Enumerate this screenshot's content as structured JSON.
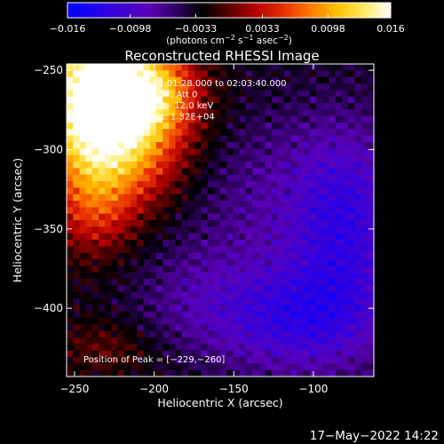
{
  "chart_data": {
    "type": "heatmap",
    "title": "Reconstructed RHESSI Image",
    "xlabel": "Heliocentric X (arcsec)",
    "ylabel": "Heliocentric Y (arcsec)",
    "xlim": [
      -255,
      -62
    ],
    "ylim": [
      -443,
      -246
    ],
    "x_ticks": [
      -250,
      -200,
      -150,
      -100
    ],
    "x_tick_labels": [
      "−250",
      "−200",
      "−150",
      "−100"
    ],
    "y_ticks": [
      -250,
      -300,
      -350,
      -400
    ],
    "y_tick_labels": [
      "−250",
      "−300",
      "−350",
      "−400"
    ],
    "colorbar": {
      "range": [
        -0.016,
        0.016
      ],
      "ticks": [
        -0.016,
        -0.0098,
        -0.0033,
        0.0033,
        0.0098,
        0.016
      ],
      "tick_labels": [
        "−0.016",
        "−0.0098",
        "−0.0033",
        "0.0033",
        "0.0098",
        "0.016"
      ],
      "units_main": "(photons cm",
      "units_exp1": "−2",
      "units_mid1": " s",
      "units_exp2": "−1",
      "units_mid2": " asec",
      "units_exp3": "−2",
      "units_end": ")",
      "colors": [
        "#0000ff",
        "#1f00ee",
        "#3d00d2",
        "#5a00b8",
        "#330066",
        "#000000",
        "#5a0000",
        "#b80000",
        "#e63000",
        "#ff7800",
        "#ffbf00",
        "#ffea60",
        "#ffffff"
      ]
    },
    "annotations": [
      "2014-Apr-2014 02:01:28.000 to 02:03:40.000",
      "Detectors: 3F 6F 9F, Att 0",
      "Energy Range: 6.0 - 12.0 keV",
      "Clean     Total counts: 1.32E+04"
    ],
    "peak_label": "Position of Peak = [−229,−260]",
    "peak_position": [
      -229,
      -260
    ],
    "approx_field": {
      "description_free": true,
      "sources": [
        {
          "x": -238,
          "y": -262,
          "amp": 0.0175,
          "sx": 26,
          "sy": 36
        },
        {
          "x": -218,
          "y": -292,
          "amp": 0.0105,
          "sx": 30,
          "sy": 30
        },
        {
          "x": -200,
          "y": -262,
          "amp": 0.0085,
          "sx": 20,
          "sy": 18
        },
        {
          "x": -238,
          "y": -338,
          "amp": 0.0055,
          "sx": 18,
          "sy": 22
        },
        {
          "x": -78,
          "y": -345,
          "amp": -0.0075,
          "sx": 26,
          "sy": 45
        },
        {
          "x": -110,
          "y": -408,
          "amp": -0.0075,
          "sx": 38,
          "sy": 25
        },
        {
          "x": -135,
          "y": -330,
          "amp": -0.0035,
          "sx": 40,
          "sy": 40
        },
        {
          "x": -175,
          "y": -395,
          "amp": -0.003,
          "sx": 30,
          "sy": 25
        },
        {
          "x": -230,
          "y": -425,
          "amp": 0.003,
          "sx": 22,
          "sy": 12
        }
      ],
      "baseline": -0.003
    }
  },
  "timestamp": "17−May−2022 14:22"
}
